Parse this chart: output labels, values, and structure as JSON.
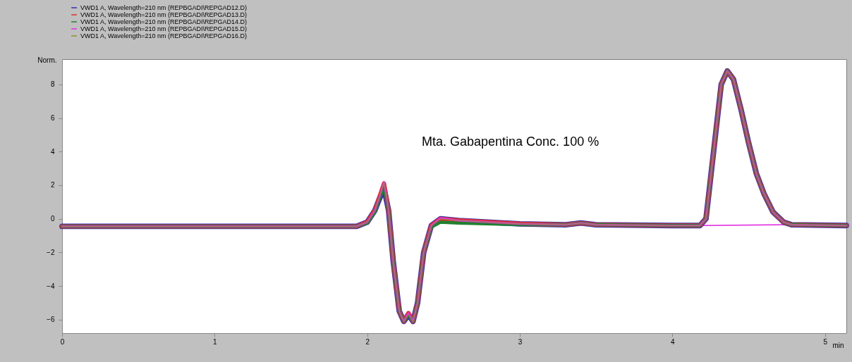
{
  "chart_data": {
    "type": "line",
    "xlabel": "min",
    "ylabel": "Norm.",
    "xlim": [
      0,
      5.14
    ],
    "ylim": [
      -6.8,
      9.5
    ],
    "xticks": [
      0,
      1,
      2,
      3,
      4,
      5
    ],
    "yticks": [
      -6,
      -4,
      -2,
      0,
      2,
      4,
      6,
      8
    ],
    "grid": false,
    "legend": "top",
    "marker": "none",
    "line_style": "solid",
    "annotations": [
      "Mta. Gabapentina Conc. 100 %"
    ],
    "x": [
      0,
      1.93,
      2.0,
      2.05,
      2.08,
      2.11,
      2.14,
      2.17,
      2.21,
      2.24,
      2.27,
      2.3,
      2.33,
      2.37,
      2.42,
      2.48,
      2.6,
      3.0,
      3.3,
      3.4,
      3.5,
      4.0,
      4.18,
      4.22,
      4.27,
      4.32,
      4.36,
      4.4,
      4.45,
      4.5,
      4.55,
      4.6,
      4.66,
      4.73,
      4.78,
      5.14
    ],
    "series": [
      {
        "name": "VWD1 A, Wavelength=210 nm (REPBGADI\\REPGAD12.D)",
        "color": "#3030b0",
        "values": [
          -0.45,
          -0.45,
          -0.2,
          0.5,
          1.2,
          1.8,
          0.5,
          -2.5,
          -5.5,
          -6.1,
          -5.7,
          -6.1,
          -5,
          -2,
          -0.4,
          0.0,
          -0.1,
          -0.3,
          -0.35,
          -0.25,
          -0.35,
          -0.4,
          -0.4,
          0.0,
          4,
          8,
          8.8,
          8.3,
          6.5,
          4.5,
          2.7,
          1.5,
          0.4,
          -0.2,
          -0.35,
          -0.4
        ]
      },
      {
        "name": "VWD1 A, Wavelength=210 nm (REPBGADI\\REPGAD13.D)",
        "color": "#e03030",
        "values": [
          -0.45,
          -0.45,
          -0.2,
          0.5,
          1.3,
          2.1,
          0.5,
          -2.5,
          -5.5,
          -6.1,
          -5.6,
          -6.1,
          -5,
          -2,
          -0.4,
          0.0,
          -0.1,
          -0.3,
          -0.35,
          -0.25,
          -0.35,
          -0.4,
          -0.4,
          0.0,
          4,
          8,
          8.8,
          8.3,
          6.5,
          4.5,
          2.7,
          1.5,
          0.4,
          -0.2,
          -0.35,
          -0.4
        ]
      },
      {
        "name": "VWD1 A, Wavelength=210 nm (REPBGADI\\REPGAD14.D)",
        "color": "#208030",
        "values": [
          -0.45,
          -0.45,
          -0.25,
          0.4,
          1.2,
          1.9,
          0.5,
          -2.5,
          -5.5,
          -6.1,
          -5.7,
          -6.1,
          -5,
          -2,
          -0.5,
          -0.2,
          -0.25,
          -0.35,
          -0.35,
          -0.25,
          -0.35,
          -0.4,
          -0.4,
          0.0,
          4,
          8,
          8.8,
          8.3,
          6.5,
          4.5,
          2.7,
          1.5,
          0.4,
          -0.2,
          -0.35,
          -0.4
        ]
      },
      {
        "name": "VWD1 A, Wavelength=210 nm (REPBGADI\\REPGAD15.D)",
        "color": "#e030e0",
        "values": [
          -0.45,
          -0.45,
          -0.2,
          0.5,
          1.3,
          2.2,
          0.5,
          -2.5,
          -5.5,
          -6.1,
          -5.6,
          -6.1,
          -5,
          -2,
          -0.4,
          0.05,
          -0.1,
          -0.3,
          -0.35,
          -0.25,
          -0.35,
          -0.4,
          -0.4,
          0.0,
          4,
          8,
          8.8,
          8.3,
          6.5,
          4.5,
          2.7,
          1.5,
          0.4,
          -0.2,
          -0.35,
          -0.4
        ]
      },
      {
        "name": "VWD1 A, Wavelength=210 nm (REPBGADI\\REPGAD16.D)",
        "color": "#909030",
        "values": [
          -0.45,
          -0.45,
          -0.2,
          0.5,
          1.3,
          2.2,
          0.5,
          -2.5,
          -5.5,
          -6.1,
          -5.7,
          -6.1,
          -5,
          -2,
          -0.4,
          0.0,
          -0.1,
          -0.3,
          -0.35,
          -0.25,
          -0.35,
          -0.4,
          -0.4,
          0.0,
          4,
          8,
          8.8,
          8.3,
          6.5,
          4.5,
          2.7,
          1.5,
          0.4,
          -0.2,
          -0.35,
          -0.4
        ]
      },
      {
        "color": "#e020e0",
        "x": [
          4.17,
          4.78
        ],
        "values": [
          -0.4,
          -0.35
        ]
      }
    ]
  }
}
